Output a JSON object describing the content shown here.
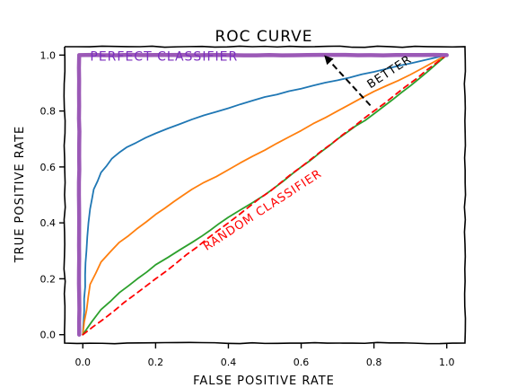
{
  "chart_data": {
    "type": "line",
    "title": "ROC CURVE",
    "xlabel": "FALSE POSITIVE RATE",
    "ylabel": "TRUE POSITIVE RATE",
    "xlim": [
      -0.05,
      1.05
    ],
    "ylim": [
      -0.03,
      1.03
    ],
    "xticks": [
      "0.0",
      "0.2",
      "0.4",
      "0.6",
      "0.8",
      "1.0"
    ],
    "yticks": [
      "0.0",
      "0.2",
      "0.4",
      "0.6",
      "0.8",
      "1.0"
    ],
    "style": "hand-drawn (xkcd)",
    "grid": false,
    "legend": "none",
    "series": [
      {
        "color": "#1f77b4",
        "x": [
          0.0,
          0.01,
          0.02,
          0.03,
          0.05,
          0.08,
          0.12,
          0.2,
          0.3,
          0.4,
          0.5,
          0.6,
          0.7,
          0.8,
          0.9,
          1.0
        ],
        "y": [
          0.0,
          0.3,
          0.45,
          0.52,
          0.58,
          0.63,
          0.67,
          0.72,
          0.77,
          0.81,
          0.85,
          0.88,
          0.91,
          0.94,
          0.97,
          1.0
        ]
      },
      {
        "color": "#ff7f0e",
        "x": [
          0.0,
          0.02,
          0.05,
          0.1,
          0.15,
          0.2,
          0.3,
          0.4,
          0.5,
          0.6,
          0.7,
          0.8,
          0.9,
          1.0
        ],
        "y": [
          0.0,
          0.18,
          0.26,
          0.33,
          0.38,
          0.43,
          0.52,
          0.59,
          0.66,
          0.73,
          0.8,
          0.87,
          0.93,
          1.0
        ]
      },
      {
        "color": "#2ca02c",
        "x": [
          0.0,
          0.05,
          0.1,
          0.2,
          0.3,
          0.4,
          0.5,
          0.6,
          0.7,
          0.8,
          0.9,
          1.0
        ],
        "y": [
          0.0,
          0.09,
          0.15,
          0.25,
          0.33,
          0.42,
          0.5,
          0.6,
          0.7,
          0.79,
          0.89,
          1.0
        ]
      },
      {
        "name": "RANDOM CLASSIFIER",
        "color": "#ff0000",
        "dashed": true,
        "x": [
          0.0,
          0.2,
          0.4,
          0.6,
          0.8,
          1.0
        ],
        "y": [
          0.0,
          0.2,
          0.4,
          0.6,
          0.8,
          1.0
        ]
      },
      {
        "name": "PERFECT CLASSIFIER",
        "color": "#9b59b6",
        "x": [
          -0.01,
          -0.01,
          1.0
        ],
        "y": [
          0.0,
          1.0,
          1.0
        ]
      }
    ],
    "annotations": [
      {
        "text": "PERFECT CLASSIFIER",
        "x": 0.02,
        "y": 0.98,
        "color": "#7b2fbe"
      },
      {
        "text": "RANDOM CLASSIFIER",
        "x": 0.34,
        "y": 0.3,
        "rotation": -33,
        "color": "#ff0000"
      },
      {
        "text": "BETTER",
        "x": 0.79,
        "y": 0.88,
        "rotation": -33,
        "color": "#000000",
        "arrow_from": [
          0.79,
          0.82
        ],
        "arrow_to": [
          0.67,
          0.99
        ]
      }
    ]
  }
}
